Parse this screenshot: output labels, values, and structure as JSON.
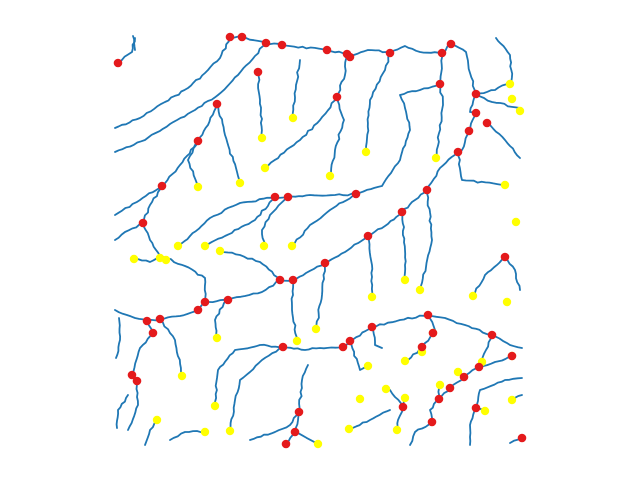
{
  "figure": {
    "kind": "stream-network-plot",
    "colors": {
      "background": "#ffffff",
      "stream": "#1f77b4",
      "junction": "#e41a1c",
      "endpoint": "#ffff00"
    },
    "stream_count": 84,
    "junction_count": 76,
    "endpoint_count": 70
  }
}
